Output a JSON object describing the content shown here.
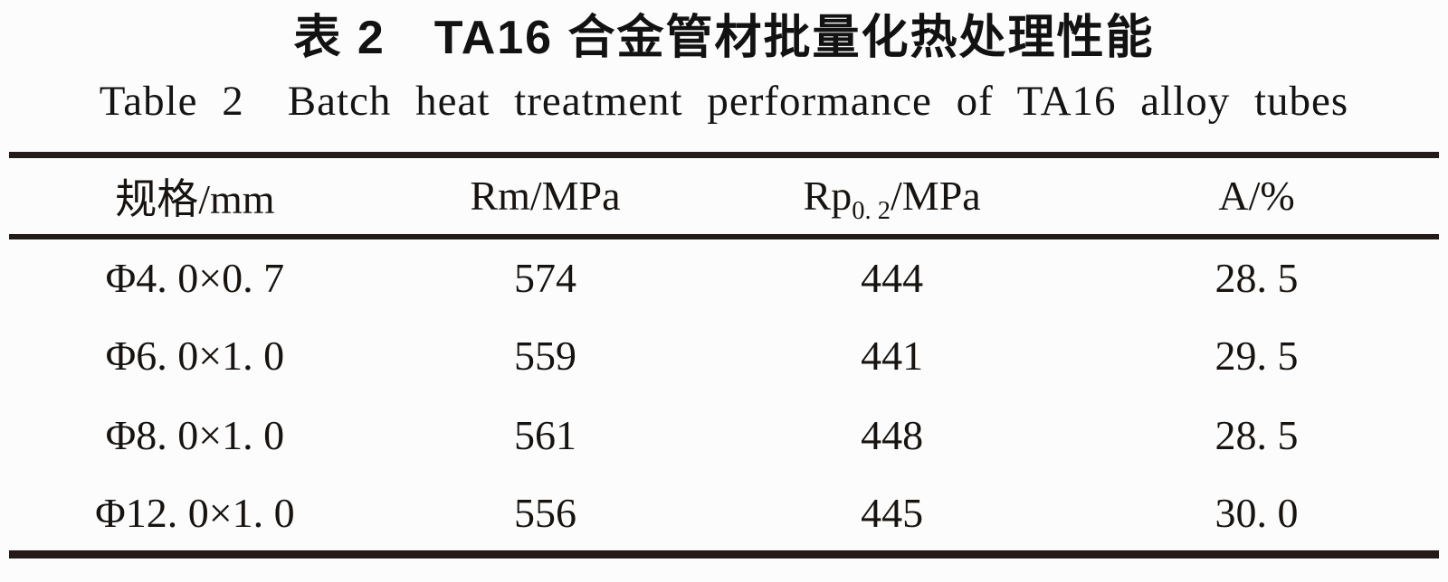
{
  "page": {
    "background_color": "#fcfcfc",
    "text_color": "#1b1512",
    "rule_color": "#241b18"
  },
  "titles": {
    "chinese": "表 2　TA16 合金管材批量化热处理性能",
    "english": "Table 2 Batch heat treatment performance of TA16 alloy tubes"
  },
  "table": {
    "headers": {
      "col1": "规格/mm",
      "col2": "Rm/MPa",
      "col3_base": "Rp",
      "col3_sub": "0. 2",
      "col3_rest": "/MPa",
      "col4": "A/%"
    },
    "rows": [
      {
        "spec": "Φ4. 0×0. 7",
        "rm": "574",
        "rp02": "444",
        "a": "28. 5"
      },
      {
        "spec": "Φ6. 0×1. 0",
        "rm": "559",
        "rp02": "441",
        "a": "29. 5"
      },
      {
        "spec": "Φ8. 0×1. 0",
        "rm": "561",
        "rp02": "448",
        "a": "28. 5"
      },
      {
        "spec": "Φ12. 0×1. 0",
        "rm": "556",
        "rp02": "445",
        "a": "30. 0"
      }
    ]
  },
  "chart_data": {
    "type": "table",
    "title": "表2 TA16合金管材批量化热处理性能 / Table 2 Batch heat treatment performance of TA16 alloy tubes",
    "columns": [
      "规格/mm",
      "Rm/MPa",
      "Rp0.2/MPa",
      "A/%"
    ],
    "rows": [
      [
        "Φ4.0×0.7",
        574,
        444,
        28.5
      ],
      [
        "Φ6.0×1.0",
        559,
        441,
        29.5
      ],
      [
        "Φ8.0×1.0",
        561,
        448,
        28.5
      ],
      [
        "Φ12.0×1.0",
        556,
        445,
        30.0
      ]
    ]
  }
}
